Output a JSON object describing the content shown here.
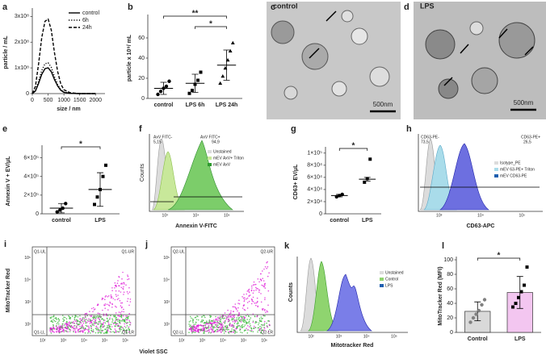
{
  "chart_data": [
    {
      "type": "line",
      "panel_label": "a",
      "ylabel": "particle / mL",
      "xlabel": "size / nm",
      "x": [
        0,
        100,
        200,
        300,
        400,
        500,
        600,
        700,
        800,
        900,
        1000,
        1200,
        1500,
        2000
      ],
      "series": [
        {
          "name": "control",
          "style": "solid",
          "color": "#000000",
          "values": [
            0,
            10000000,
            40000000,
            75000000,
            97000000,
            100000000,
            85000000,
            55000000,
            30000000,
            13000000,
            5000000,
            1000000,
            0,
            0
          ]
        },
        {
          "name": "6h",
          "style": "dotted",
          "color": "#000000",
          "values": [
            0,
            12000000,
            48000000,
            90000000,
            116000000,
            120000000,
            102000000,
            66000000,
            36000000,
            16000000,
            6000000,
            1000000,
            0,
            0
          ]
        },
        {
          "name": "24h",
          "style": "dashed",
          "color": "#000000",
          "values": [
            0,
            29000000,
            116000000,
            218000000,
            281000000,
            290000000,
            247000000,
            160000000,
            87000000,
            38000000,
            15000000,
            3000000,
            0,
            0
          ]
        }
      ],
      "xlim": [
        0,
        2300
      ],
      "xticks": [
        0,
        500,
        1000,
        1500,
        2000
      ],
      "ylim": [
        0,
        320000000
      ],
      "yticks": [
        0,
        {
          "value": 100000000,
          "label": "1x10⁸"
        },
        {
          "value": 200000000,
          "label": "2x10⁸"
        },
        {
          "value": 300000000,
          "label": "3x10⁸"
        }
      ],
      "legend": "upper-right"
    },
    {
      "type": "dot",
      "panel_label": "b",
      "ylabel": "particle x 10⁹/ mL",
      "categories": [
        "control",
        "LPS 6h",
        "LPS 24h"
      ],
      "markers": [
        "circle",
        "square",
        "triangle"
      ],
      "point_colors": [
        "#000000",
        "#000000",
        "#000000"
      ],
      "points": [
        [
          4,
          7,
          10,
          12,
          17
        ],
        [
          5,
          8,
          14,
          18,
          26
        ],
        [
          15,
          22,
          30,
          38,
          47,
          55
        ]
      ],
      "mean": [
        10,
        15,
        33
      ],
      "sd": [
        6,
        9,
        15
      ],
      "ylim": [
        0,
        80
      ],
      "yticks": [
        0,
        20,
        40,
        60
      ],
      "significance": [
        {
          "between": [
            "control",
            "LPS 24h"
          ],
          "label": "**"
        },
        {
          "between": [
            "LPS 6h",
            "LPS 24h"
          ],
          "label": "*"
        }
      ]
    },
    {
      "type": "dot",
      "panel_label": "e",
      "ylabel": "Annexin V + EV/μL",
      "categories": [
        "control",
        "LPS"
      ],
      "markers": [
        "circle",
        "square"
      ],
      "point_colors": [
        "#000000",
        "#000000"
      ],
      "points": [
        [
          20000,
          40000,
          60000,
          110000
        ],
        [
          100000,
          180000,
          260000,
          400000,
          520000
        ]
      ],
      "mean": [
        60000,
        260000
      ],
      "sd": [
        50000,
        180000
      ],
      "ylim": [
        0,
        700000
      ],
      "yticks": [
        0,
        {
          "value": 200000,
          "label": "2×10⁵"
        },
        {
          "value": 400000,
          "label": "4×10⁵"
        },
        {
          "value": 600000,
          "label": "6×10⁵"
        }
      ],
      "significance": [
        {
          "between": [
            "control",
            "LPS"
          ],
          "label": "*"
        }
      ]
    },
    {
      "type": "dot",
      "panel_label": "g",
      "ylabel": "CD63+ EV/μL",
      "categories": [
        "control",
        "LPS"
      ],
      "markers": [
        "circle",
        "square"
      ],
      "point_colors": [
        "#000000",
        "#000000"
      ],
      "points": [
        [
          28000,
          30000,
          32000
        ],
        [
          52000,
          58000,
          90000
        ]
      ],
      "mean": [
        30000,
        57000
      ],
      "sd": [
        2000,
        3000
      ],
      "ylim": [
        0,
        105000
      ],
      "yticks": [
        0,
        {
          "value": 20000,
          "label": "2×10⁴"
        },
        {
          "value": 40000,
          "label": "4×10⁴"
        },
        {
          "value": 60000,
          "label": "6×10⁴"
        },
        {
          "value": 80000,
          "label": "8×10⁴"
        },
        {
          "value": 100000,
          "label": "1×10⁵"
        }
      ],
      "significance": [
        {
          "between": [
            "control",
            "LPS"
          ],
          "label": "*"
        }
      ]
    },
    {
      "type": "bar_dot",
      "panel_label": "l",
      "ylabel": "MitoTracker Red (MFI)",
      "categories": [
        "Control",
        "LPS"
      ],
      "markers": [
        "circle",
        "square"
      ],
      "point_colors": [
        "#808080",
        "#000000"
      ],
      "bar_colors": [
        "#d9d9d9",
        "#f3c6f0"
      ],
      "points": [
        [
          14,
          20,
          25,
          30,
          38,
          45
        ],
        [
          35,
          40,
          48,
          56,
          65,
          90
        ]
      ],
      "mean": [
        29,
        55
      ],
      "sd": [
        13,
        22
      ],
      "ylim": [
        0,
        100
      ],
      "yticks": [
        0,
        20,
        40,
        60,
        80,
        100
      ],
      "significance": [
        {
          "between": [
            "Control",
            "LPS"
          ],
          "label": "*"
        }
      ]
    }
  ],
  "panels": {
    "c": {
      "label": "c",
      "title": "control",
      "scale": "500nm"
    },
    "d": {
      "label": "d",
      "title": "LPS",
      "scale": "500nm"
    },
    "f": {
      "label": "f",
      "ylabel": "Counts",
      "xlabel": "Annexin V-FITC",
      "gates": [
        "AxV FITC-",
        "5,15",
        "AxV FITC+",
        "94,9"
      ],
      "legend": [
        "Unstained",
        "mEV AxV+ Triton",
        "mEV AxV"
      ],
      "xticks": [
        "10³",
        "10⁴",
        "10⁵"
      ]
    },
    "h": {
      "label": "h",
      "xlabel": "CD63-APC",
      "gates": [
        "CD63-PE-",
        "73,5",
        "CD63-PE+",
        "26,5"
      ],
      "legend": [
        "Isotype_PE",
        "mEV 63-PE+ Triton",
        "mEV CD63-PE"
      ],
      "xticks": [
        "10³",
        "10⁴",
        "10⁵"
      ]
    },
    "i": {
      "label": "i",
      "quadrants": [
        "Q1-UL",
        "Q1-UR",
        "Q1-LL",
        "Q1-LR"
      ],
      "xticks": [
        "10²",
        "10³",
        "10⁴",
        "10⁵",
        "10⁶"
      ],
      "yticks": [
        "10²",
        "10³",
        "10⁴",
        "10⁵"
      ]
    },
    "j": {
      "label": "j",
      "quadrants": [
        "Q2-UL",
        "Q2-UR",
        "Q2-LL",
        "Q2-LR"
      ],
      "xticks": [
        "10²",
        "10³",
        "10⁴",
        "10⁵",
        "10⁶"
      ],
      "yticks": [
        "10²",
        "10³",
        "10⁴",
        "10⁵"
      ]
    },
    "ij": {
      "ylabel": "MitoTracker Red",
      "xlabel": "Violet SSC"
    },
    "k": {
      "label": "k",
      "ylabel": "Counts",
      "xlabel": "Mitotracker Red",
      "legend": [
        "Unstained",
        "Control",
        "LPS"
      ],
      "xticks": [
        "10²",
        "10³",
        "10⁴",
        "10⁵"
      ]
    }
  }
}
